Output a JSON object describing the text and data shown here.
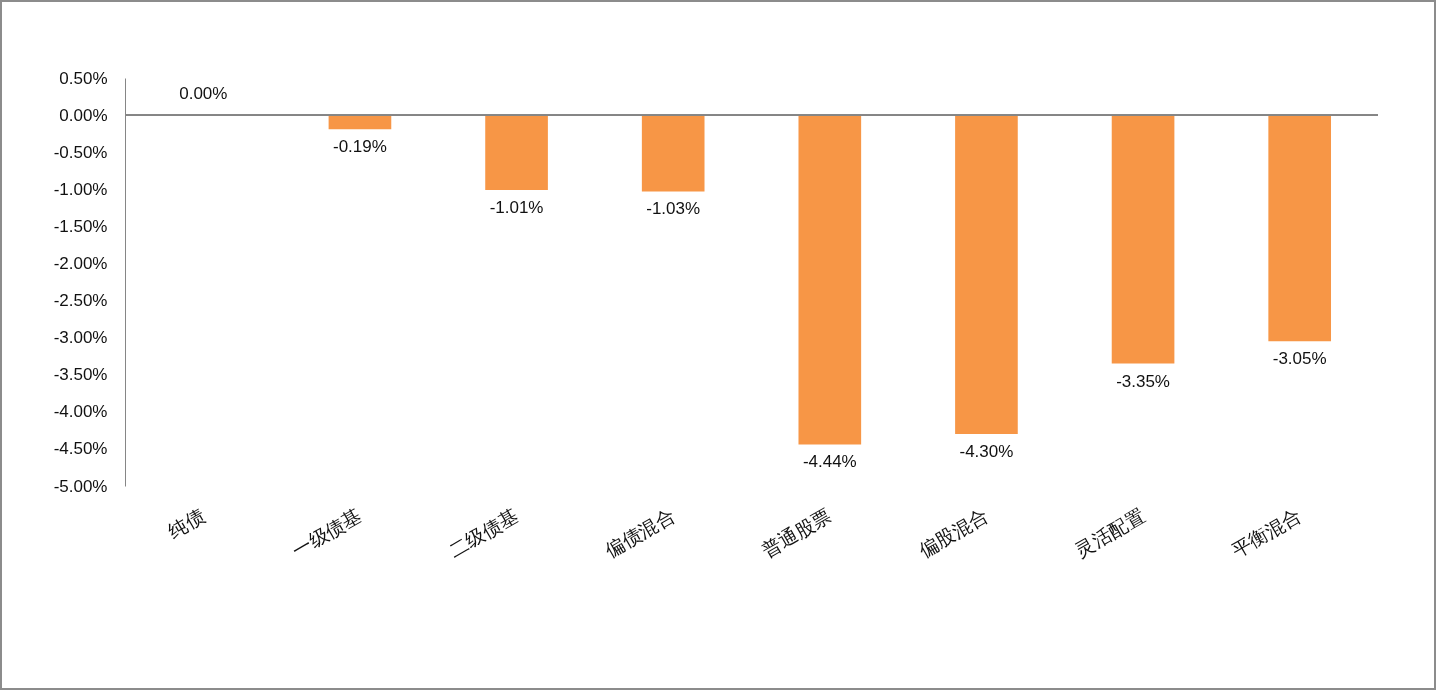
{
  "chart_data": {
    "type": "bar",
    "categories": [
      "纯债",
      "一级债基",
      "二级债基",
      "偏债混合",
      "普通股票",
      "偏股混合",
      "灵活配置",
      "平衡混合"
    ],
    "values": [
      0,
      -0.19,
      -1.01,
      -1.03,
      -4.44,
      -4.3,
      -3.35,
      -3.05
    ],
    "color": "#f79646",
    "value_labels": [
      "0.00%",
      "-0.19%",
      "-1.01%",
      "-1.03%",
      "-4.44%",
      "-4.30%",
      "-3.35%",
      "-3.05%"
    ],
    "ylim": [
      -5,
      0.5
    ],
    "yticks": [
      {
        "value": 0.5,
        "label": "0.50%"
      },
      {
        "value": 0,
        "label": "0.00%"
      },
      {
        "value": -0.5,
        "label": "-0.50%"
      },
      {
        "value": -1,
        "label": "-1.00%"
      },
      {
        "value": -1.5,
        "label": "-1.50%"
      },
      {
        "value": -2,
        "label": "-2.00%"
      },
      {
        "value": -2.5,
        "label": "-2.50%"
      },
      {
        "value": -3,
        "label": "-3.00%"
      },
      {
        "value": -3.5,
        "label": "-3.50%"
      },
      {
        "value": -4,
        "label": "-4.00%"
      },
      {
        "value": -4.5,
        "label": "-4.50%"
      },
      {
        "value": -5,
        "label": "-5.00%"
      }
    ]
  }
}
